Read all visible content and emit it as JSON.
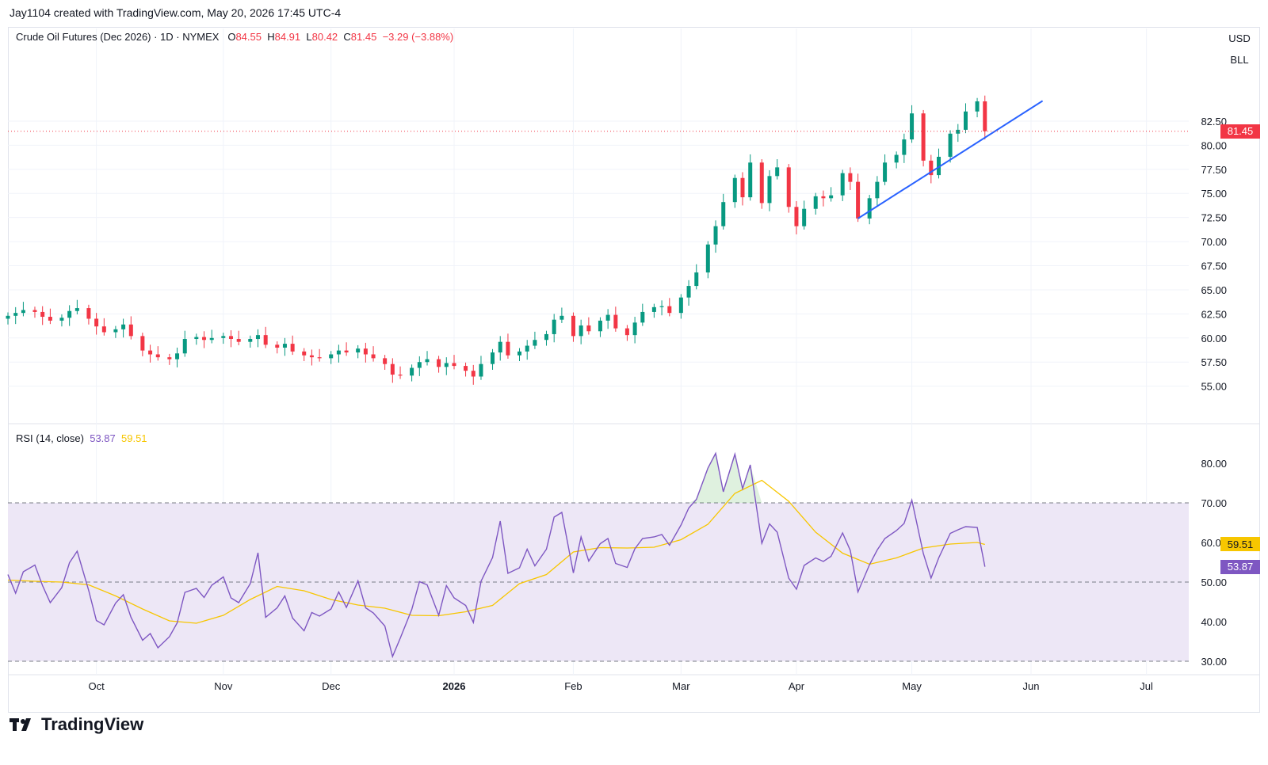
{
  "header": {
    "attribution": "Jay1104 created with TradingView.com, May 20, 2026 17:45 UTC-4"
  },
  "legend": {
    "symbol": "Crude Oil Futures (Dec 2026) · 1D · NYMEX",
    "open_label": "O",
    "open": "84.55",
    "high_label": "H",
    "high": "84.91",
    "low_label": "L",
    "low": "80.42",
    "close_label": "C",
    "close": "81.45",
    "change": "−3.29 (−3.88%)"
  },
  "rsi_legend": {
    "label": "RSI (14, close)",
    "rsi_value": "53.87",
    "ma_value": "59.51"
  },
  "chips": {
    "currency": "USD",
    "unit": "BLL"
  },
  "tags": {
    "last_price": "81.45",
    "ma_value": "59.51",
    "rsi_value": "53.87"
  },
  "brand": {
    "name": "TradingView"
  },
  "colors": {
    "up": "#089981",
    "down": "#f23645",
    "trendline": "#2962ff",
    "rsi": "#7e57c2",
    "rsi_ma": "#f7c600",
    "rsi_band": "#ede7f6",
    "grid": "#f0f3fa"
  },
  "chart_data": {
    "type": "candlestick",
    "price_axis": {
      "ticks": [
        "55.00",
        "57.50",
        "60.00",
        "62.50",
        "65.00",
        "67.50",
        "70.00",
        "72.50",
        "75.00",
        "77.50",
        "80.00",
        "82.50"
      ],
      "range": [
        53,
        88
      ]
    },
    "time_axis": {
      "ticks": [
        {
          "label": "Oct",
          "date": "2025-10-01",
          "bold": false
        },
        {
          "label": "Nov",
          "date": "2025-11-03",
          "bold": false
        },
        {
          "label": "Dec",
          "date": "2025-12-01",
          "bold": false
        },
        {
          "label": "2026",
          "date": "2026-01-02",
          "bold": true
        },
        {
          "label": "Feb",
          "date": "2026-02-02",
          "bold": false
        },
        {
          "label": "Mar",
          "date": "2026-03-02",
          "bold": false
        },
        {
          "label": "Apr",
          "date": "2026-04-01",
          "bold": false
        },
        {
          "label": "May",
          "date": "2026-05-01",
          "bold": false
        },
        {
          "label": "Jun",
          "date": "2026-06-01",
          "bold": false
        },
        {
          "label": "Jul",
          "date": "2026-07-01",
          "bold": false
        }
      ],
      "range": [
        "2025-09-08",
        "2026-07-12"
      ]
    },
    "close_series": [
      [
        "2025-09-08",
        62.3
      ],
      [
        "2025-09-10",
        62.6
      ],
      [
        "2025-09-12",
        62.9
      ],
      [
        "2025-09-15",
        62.7
      ],
      [
        "2025-09-17",
        62.2
      ],
      [
        "2025-09-19",
        61.8
      ],
      [
        "2025-09-22",
        62.1
      ],
      [
        "2025-09-24",
        62.8
      ],
      [
        "2025-09-26",
        63.1
      ],
      [
        "2025-09-29",
        62.0
      ],
      [
        "2025-10-01",
        61.2
      ],
      [
        "2025-10-03",
        60.6
      ],
      [
        "2025-10-06",
        60.9
      ],
      [
        "2025-10-08",
        61.4
      ],
      [
        "2025-10-10",
        60.2
      ],
      [
        "2025-10-13",
        58.7
      ],
      [
        "2025-10-15",
        58.3
      ],
      [
        "2025-10-17",
        58.0
      ],
      [
        "2025-10-20",
        57.8
      ],
      [
        "2025-10-22",
        58.4
      ],
      [
        "2025-10-24",
        59.9
      ],
      [
        "2025-10-27",
        60.1
      ],
      [
        "2025-10-29",
        59.8
      ],
      [
        "2025-10-31",
        60.0
      ],
      [
        "2025-11-03",
        60.2
      ],
      [
        "2025-11-05",
        59.9
      ],
      [
        "2025-11-07",
        59.6
      ],
      [
        "2025-11-10",
        59.9
      ],
      [
        "2025-11-12",
        60.3
      ],
      [
        "2025-11-14",
        59.3
      ],
      [
        "2025-11-17",
        59.0
      ],
      [
        "2025-11-19",
        59.4
      ],
      [
        "2025-11-21",
        58.6
      ],
      [
        "2025-11-24",
        58.2
      ],
      [
        "2025-11-26",
        58.0
      ],
      [
        "2025-11-28",
        57.9
      ],
      [
        "2025-12-01",
        58.3
      ],
      [
        "2025-12-03",
        58.7
      ],
      [
        "2025-12-05",
        58.5
      ],
      [
        "2025-12-08",
        58.9
      ],
      [
        "2025-12-10",
        58.3
      ],
      [
        "2025-12-12",
        57.9
      ],
      [
        "2025-12-15",
        57.3
      ],
      [
        "2025-12-17",
        56.2
      ],
      [
        "2025-12-19",
        56.1
      ],
      [
        "2025-12-22",
        56.9
      ],
      [
        "2025-12-24",
        57.5
      ],
      [
        "2025-12-26",
        57.8
      ],
      [
        "2025-12-29",
        57.0
      ],
      [
        "2025-12-31",
        57.4
      ],
      [
        "2026-01-02",
        57.1
      ],
      [
        "2026-01-05",
        56.6
      ],
      [
        "2026-01-07",
        56.0
      ],
      [
        "2026-01-09",
        57.3
      ],
      [
        "2026-01-12",
        58.5
      ],
      [
        "2026-01-14",
        59.6
      ],
      [
        "2026-01-16",
        58.2
      ],
      [
        "2026-01-19",
        58.6
      ],
      [
        "2026-01-21",
        59.2
      ],
      [
        "2026-01-23",
        59.8
      ],
      [
        "2026-01-26",
        60.4
      ],
      [
        "2026-01-28",
        61.9
      ],
      [
        "2026-01-30",
        62.3
      ],
      [
        "2026-02-02",
        60.2
      ],
      [
        "2026-02-04",
        61.3
      ],
      [
        "2026-02-06",
        60.7
      ],
      [
        "2026-02-09",
        61.8
      ],
      [
        "2026-02-11",
        62.4
      ],
      [
        "2026-02-13",
        61.0
      ],
      [
        "2026-02-16",
        60.3
      ],
      [
        "2026-02-18",
        61.6
      ],
      [
        "2026-02-20",
        62.7
      ],
      [
        "2026-02-23",
        63.2
      ],
      [
        "2026-02-25",
        63.3
      ],
      [
        "2026-02-27",
        62.6
      ],
      [
        "2026-03-02",
        64.2
      ],
      [
        "2026-03-04",
        65.4
      ],
      [
        "2026-03-06",
        66.8
      ],
      [
        "2026-03-09",
        69.7
      ],
      [
        "2026-03-11",
        71.6
      ],
      [
        "2026-03-13",
        74.1
      ],
      [
        "2026-03-16",
        76.6
      ],
      [
        "2026-03-18",
        74.6
      ],
      [
        "2026-03-20",
        78.2
      ],
      [
        "2026-03-23",
        74.0
      ],
      [
        "2026-03-25",
        76.8
      ],
      [
        "2026-03-27",
        77.7
      ],
      [
        "2026-03-30",
        73.6
      ],
      [
        "2026-04-01",
        71.6
      ],
      [
        "2026-04-03",
        73.4
      ],
      [
        "2026-04-06",
        74.7
      ],
      [
        "2026-04-08",
        74.5
      ],
      [
        "2026-04-10",
        74.8
      ],
      [
        "2026-04-13",
        77.1
      ],
      [
        "2026-04-15",
        76.2
      ],
      [
        "2026-04-17",
        72.4
      ],
      [
        "2026-04-20",
        74.5
      ],
      [
        "2026-04-22",
        76.2
      ],
      [
        "2026-04-24",
        78.2
      ],
      [
        "2026-04-27",
        79.0
      ],
      [
        "2026-04-29",
        80.6
      ],
      [
        "2026-05-01",
        83.3
      ],
      [
        "2026-05-04",
        78.4
      ],
      [
        "2026-05-06",
        76.9
      ],
      [
        "2026-05-08",
        78.8
      ],
      [
        "2026-05-11",
        81.2
      ],
      [
        "2026-05-13",
        81.6
      ],
      [
        "2026-05-15",
        83.5
      ],
      [
        "2026-05-18",
        84.55
      ],
      [
        "2026-05-20",
        81.45
      ]
    ],
    "rsi": {
      "levels": {
        "upper": 70,
        "middle": 50,
        "lower": 30
      },
      "axis_ticks": [
        "30.00",
        "40.00",
        "50.00",
        "60.00",
        "70.00",
        "80.00"
      ],
      "range": [
        27,
        84
      ],
      "rsi_series": [
        [
          "2025-09-08",
          51.9
        ],
        [
          "2025-09-10",
          47.2
        ],
        [
          "2025-09-12",
          52.6
        ],
        [
          "2025-09-15",
          54.3
        ],
        [
          "2025-09-17",
          49.1
        ],
        [
          "2025-09-19",
          44.8
        ],
        [
          "2025-09-22",
          48.6
        ],
        [
          "2025-09-24",
          54.9
        ],
        [
          "2025-09-26",
          57.8
        ],
        [
          "2025-09-29",
          47.9
        ],
        [
          "2025-10-01",
          40.3
        ],
        [
          "2025-10-03",
          39.2
        ],
        [
          "2025-10-06",
          44.7
        ],
        [
          "2025-10-08",
          46.8
        ],
        [
          "2025-10-10",
          41.1
        ],
        [
          "2025-10-13",
          35.3
        ],
        [
          "2025-10-15",
          37.0
        ],
        [
          "2025-10-17",
          33.4
        ],
        [
          "2025-10-20",
          36.2
        ],
        [
          "2025-10-22",
          39.7
        ],
        [
          "2025-10-24",
          47.4
        ],
        [
          "2025-10-27",
          48.4
        ],
        [
          "2025-10-29",
          46.1
        ],
        [
          "2025-10-31",
          49.2
        ],
        [
          "2025-11-03",
          51.3
        ],
        [
          "2025-11-05",
          46.0
        ],
        [
          "2025-11-07",
          44.8
        ],
        [
          "2025-11-10",
          49.6
        ],
        [
          "2025-11-12",
          57.4
        ],
        [
          "2025-11-14",
          41.1
        ],
        [
          "2025-11-17",
          43.5
        ],
        [
          "2025-11-19",
          46.5
        ],
        [
          "2025-11-21",
          40.9
        ],
        [
          "2025-11-24",
          37.7
        ],
        [
          "2025-11-26",
          42.3
        ],
        [
          "2025-11-28",
          41.4
        ],
        [
          "2025-12-01",
          43.2
        ],
        [
          "2025-12-03",
          47.5
        ],
        [
          "2025-12-05",
          43.6
        ],
        [
          "2025-12-08",
          50.3
        ],
        [
          "2025-12-10",
          43.5
        ],
        [
          "2025-12-12",
          42.2
        ],
        [
          "2025-12-15",
          38.9
        ],
        [
          "2025-12-17",
          31.2
        ],
        [
          "2025-12-19",
          35.8
        ],
        [
          "2025-12-22",
          43.1
        ],
        [
          "2025-12-24",
          50.1
        ],
        [
          "2025-12-26",
          49.3
        ],
        [
          "2025-12-29",
          41.6
        ],
        [
          "2025-12-31",
          49.1
        ],
        [
          "2026-01-02",
          46.0
        ],
        [
          "2026-01-05",
          44.1
        ],
        [
          "2026-01-07",
          39.8
        ],
        [
          "2026-01-09",
          50.2
        ],
        [
          "2026-01-12",
          56.2
        ],
        [
          "2026-01-14",
          65.4
        ],
        [
          "2026-01-16",
          52.2
        ],
        [
          "2026-01-19",
          53.6
        ],
        [
          "2026-01-21",
          58.3
        ],
        [
          "2026-01-23",
          54.1
        ],
        [
          "2026-01-26",
          58.3
        ],
        [
          "2026-01-28",
          66.4
        ],
        [
          "2026-01-30",
          67.6
        ],
        [
          "2026-02-02",
          52.3
        ],
        [
          "2026-02-04",
          61.4
        ],
        [
          "2026-02-06",
          55.3
        ],
        [
          "2026-02-09",
          59.7
        ],
        [
          "2026-02-11",
          61.0
        ],
        [
          "2026-02-13",
          54.7
        ],
        [
          "2026-02-16",
          53.7
        ],
        [
          "2026-02-18",
          58.4
        ],
        [
          "2026-02-20",
          61.0
        ],
        [
          "2026-02-23",
          61.4
        ],
        [
          "2026-02-25",
          62.0
        ],
        [
          "2026-02-27",
          59.3
        ],
        [
          "2026-03-02",
          64.4
        ],
        [
          "2026-03-04",
          68.7
        ],
        [
          "2026-03-06",
          70.9
        ],
        [
          "2026-03-09",
          78.8
        ],
        [
          "2026-03-11",
          82.5
        ],
        [
          "2026-03-13",
          72.8
        ],
        [
          "2026-03-16",
          82.3
        ],
        [
          "2026-03-18",
          73.6
        ],
        [
          "2026-03-20",
          79.6
        ],
        [
          "2026-03-23",
          59.8
        ],
        [
          "2026-03-25",
          64.7
        ],
        [
          "2026-03-27",
          62.6
        ],
        [
          "2026-03-30",
          51.0
        ],
        [
          "2026-04-01",
          48.2
        ],
        [
          "2026-04-03",
          54.2
        ],
        [
          "2026-04-06",
          56.1
        ],
        [
          "2026-04-08",
          55.2
        ],
        [
          "2026-04-10",
          56.5
        ],
        [
          "2026-04-13",
          62.4
        ],
        [
          "2026-04-15",
          58.0
        ],
        [
          "2026-04-17",
          47.5
        ],
        [
          "2026-04-20",
          54.4
        ],
        [
          "2026-04-22",
          58.1
        ],
        [
          "2026-04-24",
          61.0
        ],
        [
          "2026-04-27",
          63.0
        ],
        [
          "2026-04-29",
          64.8
        ],
        [
          "2026-05-01",
          70.7
        ],
        [
          "2026-05-04",
          57.2
        ],
        [
          "2026-05-06",
          51.0
        ],
        [
          "2026-05-08",
          56.1
        ],
        [
          "2026-05-11",
          62.3
        ],
        [
          "2026-05-13",
          63.2
        ],
        [
          "2026-05-15",
          64.0
        ],
        [
          "2026-05-18",
          63.8
        ],
        [
          "2026-05-20",
          53.87
        ]
      ],
      "ma_series": [
        [
          "2025-09-08",
          50.5
        ],
        [
          "2025-09-15",
          50.2
        ],
        [
          "2025-09-22",
          50.0
        ],
        [
          "2025-09-29",
          49.3
        ],
        [
          "2025-10-06",
          46.5
        ],
        [
          "2025-10-13",
          43.2
        ],
        [
          "2025-10-20",
          40.2
        ],
        [
          "2025-10-27",
          39.6
        ],
        [
          "2025-11-03",
          41.6
        ],
        [
          "2025-11-10",
          45.6
        ],
        [
          "2025-11-17",
          48.9
        ],
        [
          "2025-11-24",
          47.8
        ],
        [
          "2025-12-01",
          45.6
        ],
        [
          "2025-12-08",
          44.2
        ],
        [
          "2025-12-15",
          43.4
        ],
        [
          "2025-12-22",
          41.6
        ],
        [
          "2025-12-29",
          41.5
        ],
        [
          "2026-01-05",
          42.5
        ],
        [
          "2026-01-12",
          44.1
        ],
        [
          "2026-01-19",
          49.6
        ],
        [
          "2026-01-26",
          51.9
        ],
        [
          "2026-02-02",
          57.6
        ],
        [
          "2026-02-09",
          58.7
        ],
        [
          "2026-02-16",
          58.6
        ],
        [
          "2026-02-23",
          58.8
        ],
        [
          "2026-03-02",
          60.7
        ],
        [
          "2026-03-09",
          64.6
        ],
        [
          "2026-03-16",
          72.4
        ],
        [
          "2026-03-23",
          75.7
        ],
        [
          "2026-03-30",
          70.4
        ],
        [
          "2026-04-06",
          62.6
        ],
        [
          "2026-04-13",
          57.3
        ],
        [
          "2026-04-20",
          54.5
        ],
        [
          "2026-04-27",
          56.1
        ],
        [
          "2026-05-04",
          58.6
        ],
        [
          "2026-05-11",
          59.6
        ],
        [
          "2026-05-18",
          60.0
        ],
        [
          "2026-05-20",
          59.51
        ]
      ]
    }
  }
}
